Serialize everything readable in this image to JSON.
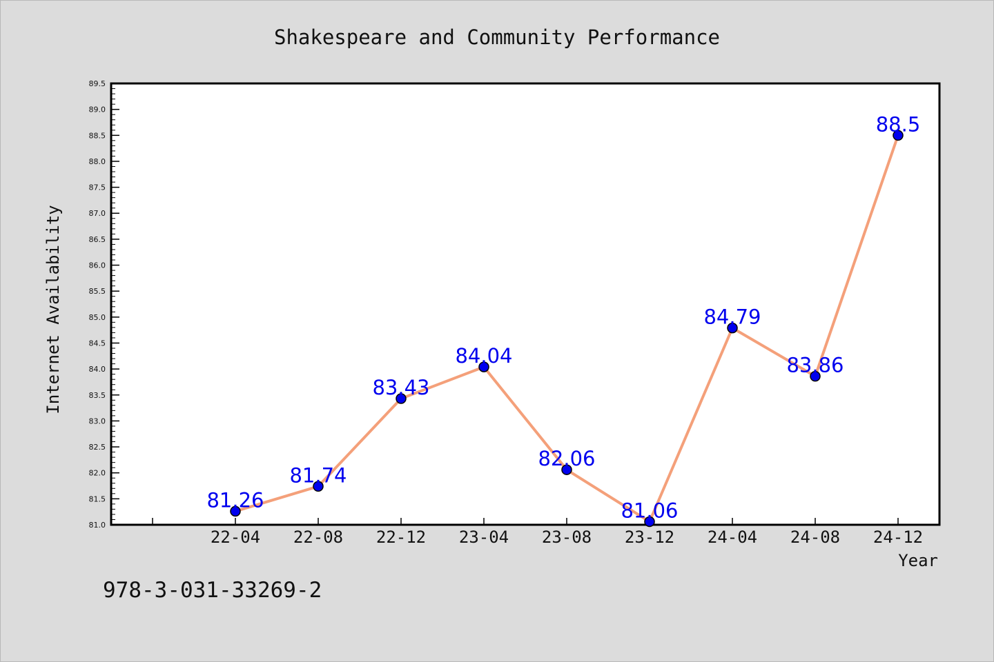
{
  "chart_data": {
    "type": "line",
    "title": "Shakespeare and Community Performance",
    "xlabel": "Year",
    "ylabel": "Internet Availability",
    "categories": [
      "22-04",
      "22-08",
      "22-12",
      "23-04",
      "23-08",
      "23-12",
      "24-04",
      "24-08",
      "24-12"
    ],
    "series": [
      {
        "values": [
          81.26,
          81.74,
          83.43,
          84.04,
          82.06,
          81.06,
          84.79,
          83.86,
          88.5
        ]
      }
    ],
    "data_labels": [
      "81.26",
      "81.74",
      "83.43",
      "84.04",
      "82.06",
      "81.06",
      "84.79",
      "83.86",
      "88.5"
    ],
    "ylim": [
      81.0,
      89.5
    ],
    "yticks": [
      "81.0",
      "81.5",
      "82.0",
      "82.5",
      "83.0",
      "83.5",
      "84.0",
      "84.5",
      "85.0",
      "85.5",
      "86.0",
      "86.5",
      "87.0",
      "87.5",
      "88.0",
      "88.5",
      "89.0",
      "89.5"
    ],
    "grid": false,
    "line_color": "#f4a07a",
    "marker_color": "#0000ee",
    "label_color": "#0000ee",
    "figure_background": "#dcdcdc",
    "plot_background": "#ffffff"
  },
  "footer": {
    "isbn": "978-3-031-33269-2"
  }
}
